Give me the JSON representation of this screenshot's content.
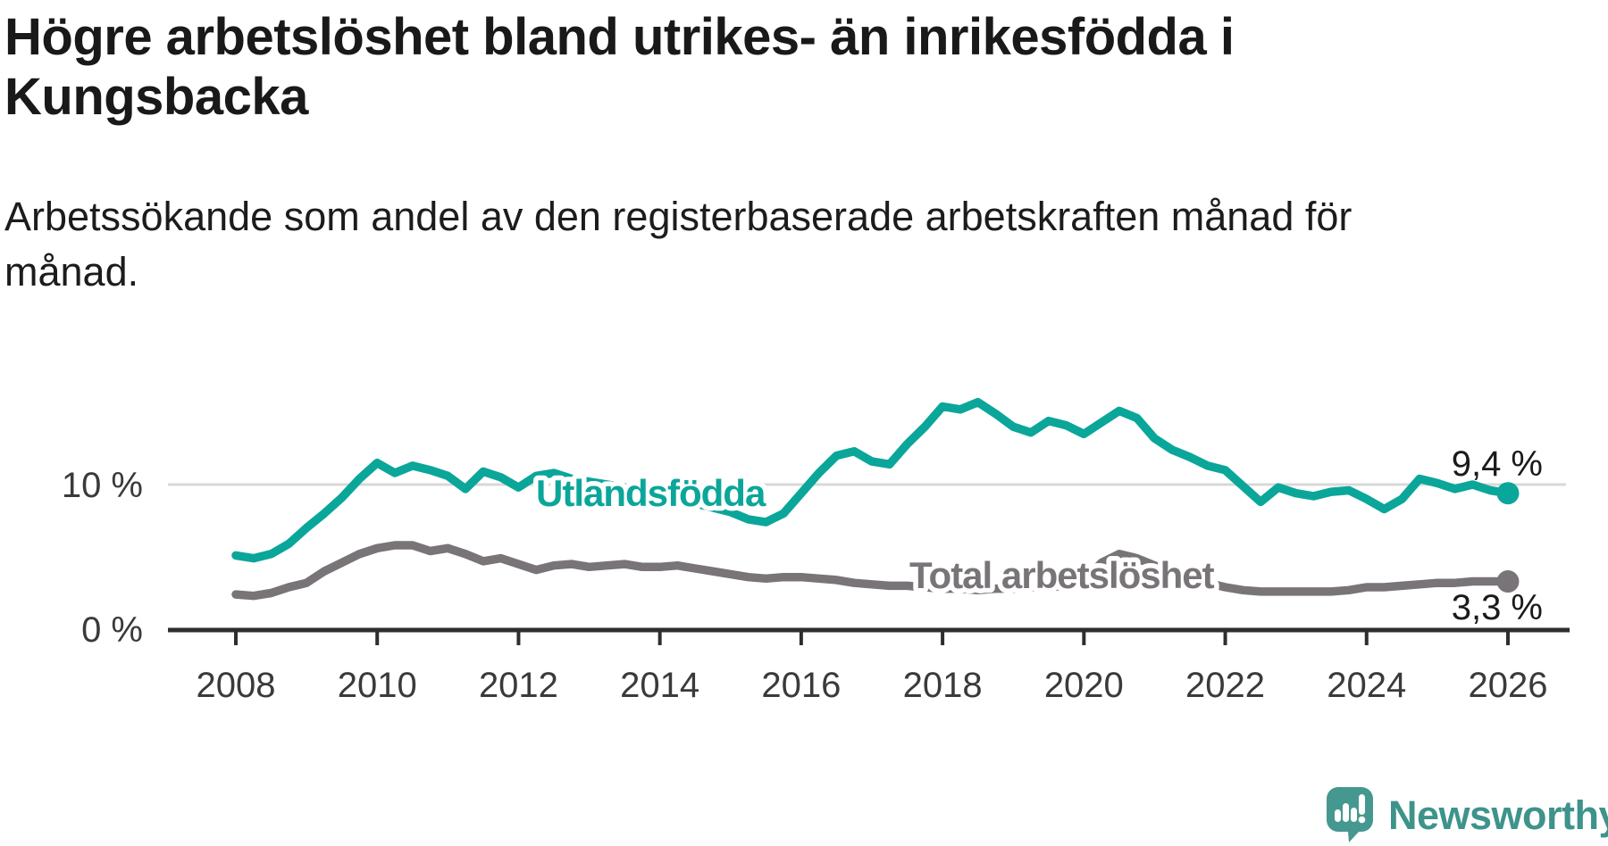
{
  "header": {
    "title_lines": [
      "Högre arbetslöshet bland utrikes- än inrikesfödda i",
      "Kungsbacka"
    ],
    "subtitle_lines": [
      "Arbetssökande som andel av den registerbaserade arbetskraften månad för",
      "månad."
    ]
  },
  "chart_data": {
    "type": "line",
    "title": "Högre arbetslöshet bland utrikes- än inrikesfödda i Kungsbacka",
    "subtitle": "Arbetssökande som andel av den registerbaserade arbetskraften månad för månad.",
    "xlabel": "",
    "ylabel": "",
    "x_range": [
      2008,
      2026.1
    ],
    "ylim": [
      0,
      17
    ],
    "grid": "single horizontal gridline at 10 %",
    "legend_position": "inline labels on lines",
    "y_ticks": [
      {
        "value": 0,
        "label": "0 %"
      },
      {
        "value": 10,
        "label": "10 %"
      }
    ],
    "x_ticks": [
      {
        "value": 2008,
        "label": "2008"
      },
      {
        "value": 2010,
        "label": "2010"
      },
      {
        "value": 2012,
        "label": "2012"
      },
      {
        "value": 2014,
        "label": "2014"
      },
      {
        "value": 2016,
        "label": "2016"
      },
      {
        "value": 2018,
        "label": "2018"
      },
      {
        "value": 2020,
        "label": "2020"
      },
      {
        "value": 2022,
        "label": "2022"
      },
      {
        "value": 2024,
        "label": "2024"
      },
      {
        "value": 2026,
        "label": "2026"
      }
    ],
    "series": [
      {
        "key": "utlandsfodda",
        "name": "Utlandsfödda",
        "color": "#0ba69a",
        "end_label": "9,4 %",
        "points": [
          [
            2008.0,
            5.1
          ],
          [
            2008.25,
            4.9
          ],
          [
            2008.5,
            5.2
          ],
          [
            2008.75,
            5.9
          ],
          [
            2009.0,
            7.0
          ],
          [
            2009.25,
            8.0
          ],
          [
            2009.5,
            9.1
          ],
          [
            2009.75,
            10.4
          ],
          [
            2010.0,
            11.5
          ],
          [
            2010.25,
            10.8
          ],
          [
            2010.5,
            11.3
          ],
          [
            2010.75,
            11.0
          ],
          [
            2011.0,
            10.6
          ],
          [
            2011.25,
            9.7
          ],
          [
            2011.5,
            10.9
          ],
          [
            2011.75,
            10.5
          ],
          [
            2012.0,
            9.8
          ],
          [
            2012.25,
            10.6
          ],
          [
            2012.5,
            10.8
          ],
          [
            2012.75,
            10.4
          ],
          [
            2013.0,
            10.2
          ],
          [
            2013.25,
            10.0
          ],
          [
            2013.5,
            9.8
          ],
          [
            2013.75,
            9.5
          ],
          [
            2014.0,
            9.3
          ],
          [
            2014.25,
            9.0
          ],
          [
            2014.5,
            8.7
          ],
          [
            2014.75,
            8.4
          ],
          [
            2015.0,
            8.1
          ],
          [
            2015.25,
            7.6
          ],
          [
            2015.5,
            7.4
          ],
          [
            2015.75,
            8.0
          ],
          [
            2016.0,
            9.4
          ],
          [
            2016.25,
            10.8
          ],
          [
            2016.5,
            12.0
          ],
          [
            2016.75,
            12.3
          ],
          [
            2017.0,
            11.6
          ],
          [
            2017.25,
            11.4
          ],
          [
            2017.5,
            12.8
          ],
          [
            2017.75,
            14.0
          ],
          [
            2018.0,
            15.4
          ],
          [
            2018.25,
            15.2
          ],
          [
            2018.5,
            15.7
          ],
          [
            2018.75,
            14.9
          ],
          [
            2019.0,
            14.0
          ],
          [
            2019.25,
            13.6
          ],
          [
            2019.5,
            14.4
          ],
          [
            2019.75,
            14.1
          ],
          [
            2020.0,
            13.5
          ],
          [
            2020.25,
            14.3
          ],
          [
            2020.5,
            15.1
          ],
          [
            2020.75,
            14.6
          ],
          [
            2021.0,
            13.2
          ],
          [
            2021.25,
            12.4
          ],
          [
            2021.5,
            11.9
          ],
          [
            2021.75,
            11.3
          ],
          [
            2022.0,
            11.0
          ],
          [
            2022.25,
            9.9
          ],
          [
            2022.5,
            8.8
          ],
          [
            2022.75,
            9.8
          ],
          [
            2023.0,
            9.4
          ],
          [
            2023.25,
            9.2
          ],
          [
            2023.5,
            9.5
          ],
          [
            2023.75,
            9.6
          ],
          [
            2024.0,
            9.0
          ],
          [
            2024.25,
            8.3
          ],
          [
            2024.5,
            9.0
          ],
          [
            2024.75,
            10.4
          ],
          [
            2025.0,
            10.1
          ],
          [
            2025.25,
            9.7
          ],
          [
            2025.5,
            10.0
          ],
          [
            2025.75,
            9.6
          ],
          [
            2026.0,
            9.4
          ]
        ]
      },
      {
        "key": "total-arbetsloshet",
        "name": "Total arbetslöshet",
        "color": "#787478",
        "end_label": "3,3 %",
        "points": [
          [
            2008.0,
            2.4
          ],
          [
            2008.25,
            2.3
          ],
          [
            2008.5,
            2.5
          ],
          [
            2008.75,
            2.9
          ],
          [
            2009.0,
            3.2
          ],
          [
            2009.25,
            4.0
          ],
          [
            2009.5,
            4.6
          ],
          [
            2009.75,
            5.2
          ],
          [
            2010.0,
            5.6
          ],
          [
            2010.25,
            5.8
          ],
          [
            2010.5,
            5.8
          ],
          [
            2010.75,
            5.4
          ],
          [
            2011.0,
            5.6
          ],
          [
            2011.25,
            5.2
          ],
          [
            2011.5,
            4.7
          ],
          [
            2011.75,
            4.9
          ],
          [
            2012.0,
            4.5
          ],
          [
            2012.25,
            4.1
          ],
          [
            2012.5,
            4.4
          ],
          [
            2012.75,
            4.5
          ],
          [
            2013.0,
            4.3
          ],
          [
            2013.25,
            4.4
          ],
          [
            2013.5,
            4.5
          ],
          [
            2013.75,
            4.3
          ],
          [
            2014.0,
            4.3
          ],
          [
            2014.25,
            4.4
          ],
          [
            2014.5,
            4.2
          ],
          [
            2014.75,
            4.0
          ],
          [
            2015.0,
            3.8
          ],
          [
            2015.25,
            3.6
          ],
          [
            2015.5,
            3.5
          ],
          [
            2015.75,
            3.6
          ],
          [
            2016.0,
            3.6
          ],
          [
            2016.25,
            3.5
          ],
          [
            2016.5,
            3.4
          ],
          [
            2016.75,
            3.2
          ],
          [
            2017.0,
            3.1
          ],
          [
            2017.25,
            3.0
          ],
          [
            2017.5,
            3.0
          ],
          [
            2017.75,
            2.9
          ],
          [
            2018.0,
            2.8
          ],
          [
            2018.25,
            2.8
          ],
          [
            2018.5,
            2.7
          ],
          [
            2018.75,
            2.8
          ],
          [
            2019.0,
            2.8
          ],
          [
            2019.25,
            2.9
          ],
          [
            2019.5,
            2.9
          ],
          [
            2019.75,
            3.0
          ],
          [
            2020.0,
            3.3
          ],
          [
            2020.25,
            4.6
          ],
          [
            2020.5,
            5.2
          ],
          [
            2020.75,
            4.9
          ],
          [
            2021.0,
            4.4
          ],
          [
            2021.25,
            3.9
          ],
          [
            2021.5,
            3.5
          ],
          [
            2021.75,
            3.2
          ],
          [
            2022.0,
            2.9
          ],
          [
            2022.25,
            2.7
          ],
          [
            2022.5,
            2.6
          ],
          [
            2022.75,
            2.6
          ],
          [
            2023.0,
            2.6
          ],
          [
            2023.25,
            2.6
          ],
          [
            2023.5,
            2.6
          ],
          [
            2023.75,
            2.7
          ],
          [
            2024.0,
            2.9
          ],
          [
            2024.25,
            2.9
          ],
          [
            2024.5,
            3.0
          ],
          [
            2024.75,
            3.1
          ],
          [
            2025.0,
            3.2
          ],
          [
            2025.25,
            3.2
          ],
          [
            2025.5,
            3.3
          ],
          [
            2025.75,
            3.3
          ],
          [
            2026.0,
            3.3
          ]
        ]
      }
    ],
    "colors": {
      "gridline": "#d8d8d8",
      "axis": "#2e2e2e",
      "tick_text": "#3a3a3a",
      "value_text": "#1a1a1a"
    }
  },
  "branding": {
    "name": "Newsworthy",
    "color": "#3e938b",
    "icon": "newsworthy-bubble-chart-icon",
    "icon_color": "#45988f"
  }
}
